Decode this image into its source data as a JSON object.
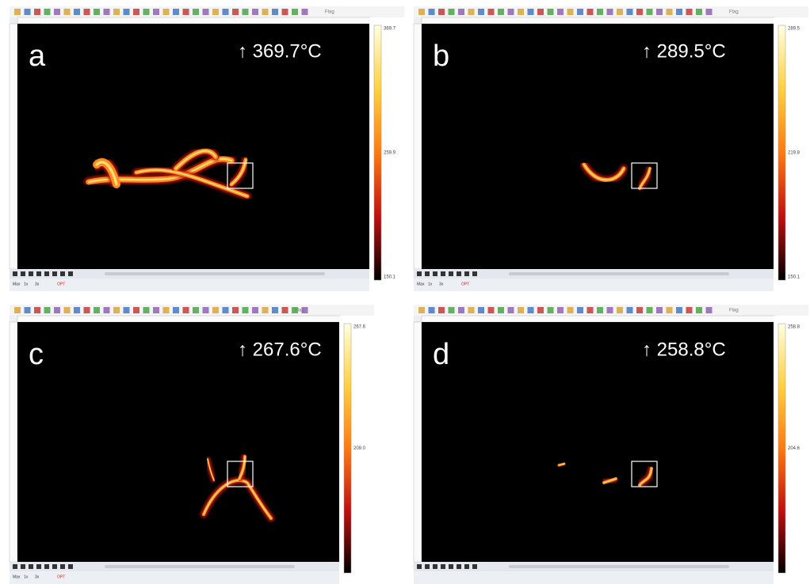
{
  "panels": [
    {
      "label": "a",
      "max_temp": "↑ 369.7°C",
      "scale": [
        "369.7",
        "259.9",
        "150.1"
      ],
      "flag": "Flag",
      "controls": [
        "Max",
        "1x",
        "3x",
        "OPT"
      ]
    },
    {
      "label": "b",
      "max_temp": "↑ 289.5°C",
      "scale": [
        "289.5",
        "219.8",
        "150.1"
      ],
      "flag": "Flag",
      "controls": [
        "Max",
        "1x",
        "3x",
        "OPT"
      ]
    },
    {
      "label": "c",
      "max_temp": "↑ 267.6°C",
      "scale": [
        "267.6",
        "209.0"
      ],
      "flag": "Flag",
      "controls": [
        "Max",
        "1x",
        "3x",
        "OPT"
      ]
    },
    {
      "label": "d",
      "max_temp": "↑ 258.8°C",
      "scale": [
        "258.8",
        "204.6"
      ],
      "flag": "Flag",
      "controls": []
    }
  ]
}
